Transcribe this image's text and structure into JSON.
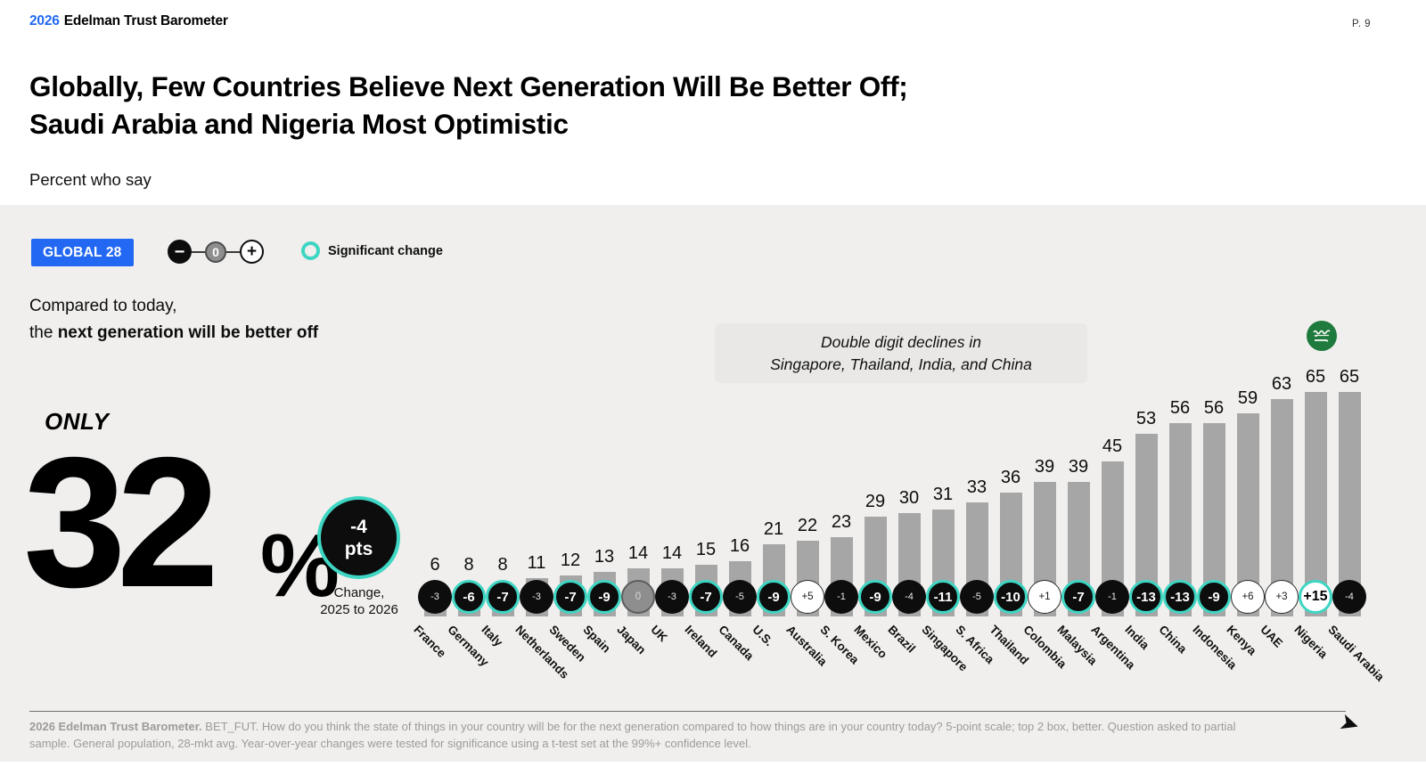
{
  "colors": {
    "accent_blue": "#2368F2",
    "significant_teal": "#3ED6C3",
    "bar_gray": "#A6A6A6",
    "panel_bg": "#F0EFED",
    "annotation_bg": "#E9E8E6",
    "badge_black": "#0D0D0D",
    "footer_gray": "#9B9B9B",
    "flag_green": "#1E7A3D"
  },
  "header": {
    "logo_year": "2026",
    "logo_name": "Edelman Trust Barometer",
    "page_number": "P. 9"
  },
  "title": {
    "line1": "Globally, Few Countries Believe Next Generation Will Be Better Off;",
    "line2": "Saudi Arabia and Nigeria Most Optimistic"
  },
  "subtitle": "Percent who say",
  "controls": {
    "global_label": "GLOBAL 28",
    "stepper": {
      "minus": "−",
      "value": "0",
      "plus": "+"
    },
    "legend_label": "Significant change"
  },
  "statement": {
    "line1": "Compared to today,",
    "line2_prefix": "the ",
    "line2_bold": "next generation will be better off"
  },
  "highlight": {
    "only": "ONLY",
    "value": "32",
    "unit": "%",
    "change_value": "-4",
    "change_unit": "pts",
    "caption_line1": "Change,",
    "caption_line2": "2025 to 2026"
  },
  "annotation": {
    "line1": "Double digit declines in",
    "line2": "Singapore, Thailand, India, and China"
  },
  "flag_icon": "saudi-arabia-flag",
  "chart_data": {
    "type": "bar",
    "title": "Compared to today, the next generation will be better off",
    "subtitle": "Percent who say",
    "units": "%",
    "ylim": [
      0,
      70
    ],
    "grid": false,
    "legend": {
      "label": "Significant change",
      "style": "teal ring around change badge"
    },
    "global": {
      "label": "GLOBAL 28",
      "value": 32,
      "change": "-4 pts",
      "caption": "Change, 2025 to 2026",
      "significant": true
    },
    "annotation": "Double digit declines in Singapore, Thailand, India, and China",
    "countries": [
      {
        "name": "France",
        "value": 6,
        "change": "-3",
        "significant": false
      },
      {
        "name": "Germany",
        "value": 8,
        "change": "-6",
        "significant": true
      },
      {
        "name": "Italy",
        "value": 8,
        "change": "-7",
        "significant": true
      },
      {
        "name": "Netherlands",
        "value": 11,
        "change": "-3",
        "significant": false
      },
      {
        "name": "Sweden",
        "value": 12,
        "change": "-7",
        "significant": true
      },
      {
        "name": "Spain",
        "value": 13,
        "change": "-9",
        "significant": true
      },
      {
        "name": "Japan",
        "value": 14,
        "change": "0",
        "significant": false
      },
      {
        "name": "UK",
        "value": 14,
        "change": "-3",
        "significant": false
      },
      {
        "name": "Ireland",
        "value": 15,
        "change": "-7",
        "significant": true
      },
      {
        "name": "Canada",
        "value": 16,
        "change": "-5",
        "significant": false
      },
      {
        "name": "U.S.",
        "value": 21,
        "change": "-9",
        "significant": true
      },
      {
        "name": "Australia",
        "value": 22,
        "change": "+5",
        "significant": false
      },
      {
        "name": "S. Korea",
        "value": 23,
        "change": "-1",
        "significant": false
      },
      {
        "name": "Mexico",
        "value": 29,
        "change": "-9",
        "significant": true
      },
      {
        "name": "Brazil",
        "value": 30,
        "change": "-4",
        "significant": false
      },
      {
        "name": "Singapore",
        "value": 31,
        "change": "-11",
        "significant": true
      },
      {
        "name": "S. Africa",
        "value": 33,
        "change": "-5",
        "significant": false
      },
      {
        "name": "Thailand",
        "value": 36,
        "change": "-10",
        "significant": true
      },
      {
        "name": "Colombia",
        "value": 39,
        "change": "+1",
        "significant": false
      },
      {
        "name": "Malaysia",
        "value": 39,
        "change": "-7",
        "significant": true
      },
      {
        "name": "Argentina",
        "value": 45,
        "change": "-1",
        "significant": false
      },
      {
        "name": "India",
        "value": 53,
        "change": "-13",
        "significant": true
      },
      {
        "name": "China",
        "value": 56,
        "change": "-13",
        "significant": true
      },
      {
        "name": "Indonesia",
        "value": 56,
        "change": "-9",
        "significant": true
      },
      {
        "name": "Kenya",
        "value": 59,
        "change": "+6",
        "significant": false
      },
      {
        "name": "UAE",
        "value": 63,
        "change": "+3",
        "significant": false
      },
      {
        "name": "Nigeria",
        "value": 65,
        "change": "+15",
        "significant": true
      },
      {
        "name": "Saudi Arabia",
        "value": 65,
        "change": "-4",
        "significant": false
      }
    ]
  },
  "footer": {
    "line1_bold": "2026 Edelman Trust Barometer.",
    "line1_rest": " BET_FUT. How do you think the state of things in your country will be for the next generation compared to how things are in your country today? 5-point scale; top 2 box, better. Question asked to partial",
    "line2": "sample. General population, 28-mkt avg. Year-over-year changes were tested for significance using a t-test set at the 99%+ confidence level.",
    "next_arrow": "➤"
  }
}
